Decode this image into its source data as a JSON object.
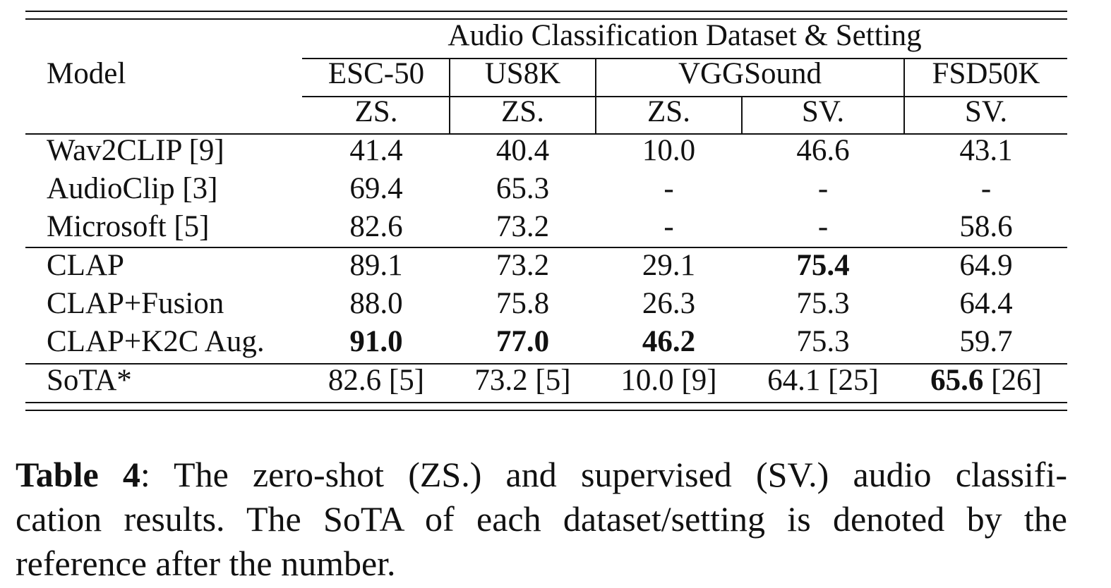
{
  "table": {
    "group_header": "Audio Classification Dataset & Setting",
    "model_header": "Model",
    "datasets": [
      "ESC-50",
      "US8K",
      "VGGSound",
      "FSD50K"
    ],
    "settings": [
      "ZS.",
      "ZS.",
      "ZS.",
      "SV.",
      "SV."
    ],
    "rows": [
      {
        "model": "Wav2CLIP [9]",
        "cells": [
          "41.4",
          "40.4",
          "10.0",
          "46.6",
          "43.1"
        ]
      },
      {
        "model": "AudioClip [3]",
        "cells": [
          "69.4",
          "65.3",
          "-",
          "-",
          "-"
        ]
      },
      {
        "model": "Microsoft [5]",
        "cells": [
          "82.6",
          "73.2",
          "-",
          "-",
          "58.6"
        ]
      },
      {
        "model": "CLAP",
        "cells": [
          "89.1",
          "73.2",
          "29.1",
          "75.4",
          "64.9"
        ]
      },
      {
        "model": "CLAP+Fusion",
        "cells": [
          "88.0",
          "75.8",
          "26.3",
          "75.3",
          "64.4"
        ]
      },
      {
        "model": "CLAP+K2C Aug.",
        "cells": [
          "91.0",
          "77.0",
          "46.2",
          "75.3",
          "59.7"
        ]
      }
    ],
    "sota_row": {
      "model": "SoTA*",
      "cells": [
        {
          "value": "82.6",
          "ref": " [5]"
        },
        {
          "value": "73.2",
          "ref": " [5]"
        },
        {
          "value": "10.0",
          "ref": " [9]"
        },
        {
          "value": "64.1",
          "ref": " [25]"
        },
        {
          "value": "65.6",
          "ref": " [26]"
        }
      ]
    },
    "bold_cells": [
      [
        3,
        3
      ],
      [
        5,
        0
      ],
      [
        5,
        1
      ],
      [
        5,
        2
      ]
    ],
    "bold_sota_cells": [
      4
    ]
  },
  "caption": {
    "label": "Table 4",
    "line1": ":  The zero-shot (ZS.) and supervised (SV.) audio classifi-",
    "line2": "cation results.  The SoTA of each dataset/setting is denoted by the",
    "line3": "reference after the number."
  }
}
